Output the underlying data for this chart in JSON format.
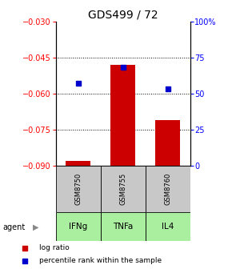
{
  "title": "GDS499 / 72",
  "categories": [
    "IFNg",
    "TNFa",
    "IL4"
  ],
  "gsm_labels": [
    "GSM8750",
    "GSM8755",
    "GSM8760"
  ],
  "log_ratios": [
    -0.088,
    -0.048,
    -0.071
  ],
  "percentile_ranks": [
    57,
    68,
    53
  ],
  "ylim_left": [
    -0.09,
    -0.03
  ],
  "ylim_right": [
    0,
    100
  ],
  "yticks_left": [
    -0.09,
    -0.075,
    -0.06,
    -0.045,
    -0.03
  ],
  "yticks_right": [
    0,
    25,
    50,
    75,
    100
  ],
  "ytick_labels_right": [
    "0",
    "25",
    "50",
    "75",
    "100%"
  ],
  "bar_color": "#cc0000",
  "dot_color": "#0000cc",
  "bar_width": 0.55,
  "agent_label": "agent",
  "green_bg": "#aaeea a",
  "gray_bg": "#c8c8c8",
  "title_fontsize": 10,
  "tick_fontsize": 7,
  "legend_fontsize": 6.5,
  "gsm_fontsize": 6,
  "cat_fontsize": 7.5
}
